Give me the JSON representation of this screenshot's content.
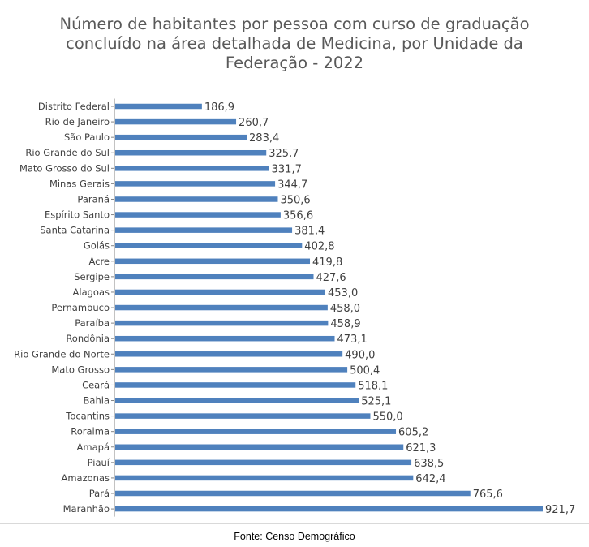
{
  "chart_data": {
    "type": "bar",
    "orientation": "horizontal",
    "title_lines": [
      "Número de habitantes por pessoa com curso de graduação",
      "concluído na área detalhada de Medicina, por Unidade da",
      "Federação - 2022"
    ],
    "categories": [
      "Distrito Federal",
      "Rio de Janeiro",
      "São Paulo",
      "Rio Grande do Sul",
      "Mato Grosso do Sul",
      "Minas Gerais",
      "Paraná",
      "Espírito Santo",
      "Santa Catarina",
      "Goiás",
      "Acre",
      "Sergipe",
      "Alagoas",
      "Pernambuco",
      "Paraíba",
      "Rondônia",
      "Rio Grande do Norte",
      "Mato Grosso",
      "Ceará",
      "Bahia",
      "Tocantins",
      "Roraima",
      "Amapá",
      "Piauí",
      "Amazonas",
      "Pará",
      "Maranhão"
    ],
    "values": [
      186.9,
      260.7,
      283.4,
      325.7,
      331.7,
      344.7,
      350.6,
      356.6,
      381.4,
      402.8,
      419.8,
      427.6,
      453.0,
      458.0,
      458.9,
      473.1,
      490.0,
      500.4,
      518.1,
      525.1,
      550.0,
      605.2,
      621.3,
      638.5,
      642.4,
      765.6,
      921.7
    ],
    "value_labels": [
      "186,9",
      "260,7",
      "283,4",
      "325,7",
      "331,7",
      "344,7",
      "350,6",
      "356,6",
      "381,4",
      "402,8",
      "419,8",
      "427,6",
      "453,0",
      "458,0",
      "458,9",
      "473,1",
      "490,0",
      "500,4",
      "518,1",
      "525,1",
      "550,0",
      "605,2",
      "621,3",
      "638,5",
      "642,4",
      "765,6",
      "921,7"
    ],
    "xlim": [
      0,
      921.7
    ],
    "xlabel": "",
    "ylabel": "",
    "grid": false,
    "legend": "none",
    "bar_color": "#4f81bd",
    "axis_color": "#868686"
  },
  "footer": {
    "source": "Fonte: Censo Demográfico"
  }
}
